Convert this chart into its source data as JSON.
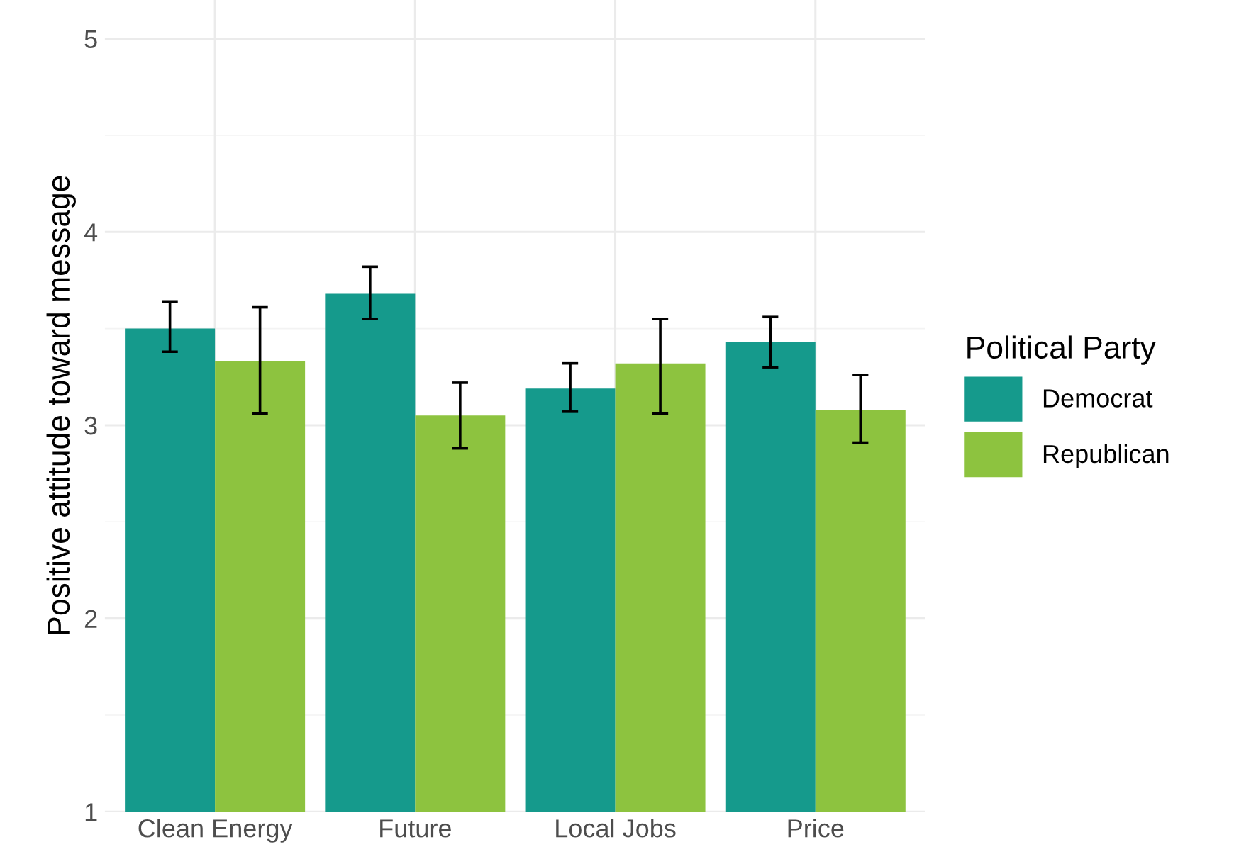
{
  "chart_data": {
    "type": "bar",
    "ylabel": "Positive attitude toward message",
    "legend_title": "Political Party",
    "categories": [
      "Clean Energy",
      "Future",
      "Local Jobs",
      "Price"
    ],
    "series": [
      {
        "name": "Democrat",
        "color": "#159a8c",
        "values": [
          3.5,
          3.68,
          3.19,
          3.43
        ],
        "errors": [
          [
            3.38,
            3.64
          ],
          [
            3.55,
            3.82
          ],
          [
            3.07,
            3.32
          ],
          [
            3.3,
            3.56
          ]
        ]
      },
      {
        "name": "Republican",
        "color": "#8dc33f",
        "values": [
          3.33,
          3.05,
          3.32,
          3.08
        ],
        "errors": [
          [
            3.06,
            3.61
          ],
          [
            2.88,
            3.22
          ],
          [
            3.06,
            3.55
          ],
          [
            2.91,
            3.26
          ]
        ]
      }
    ],
    "ylim": [
      1,
      5.2
    ],
    "yticks": [
      1,
      2,
      3,
      4,
      5
    ],
    "grid": true,
    "legend": "right"
  }
}
